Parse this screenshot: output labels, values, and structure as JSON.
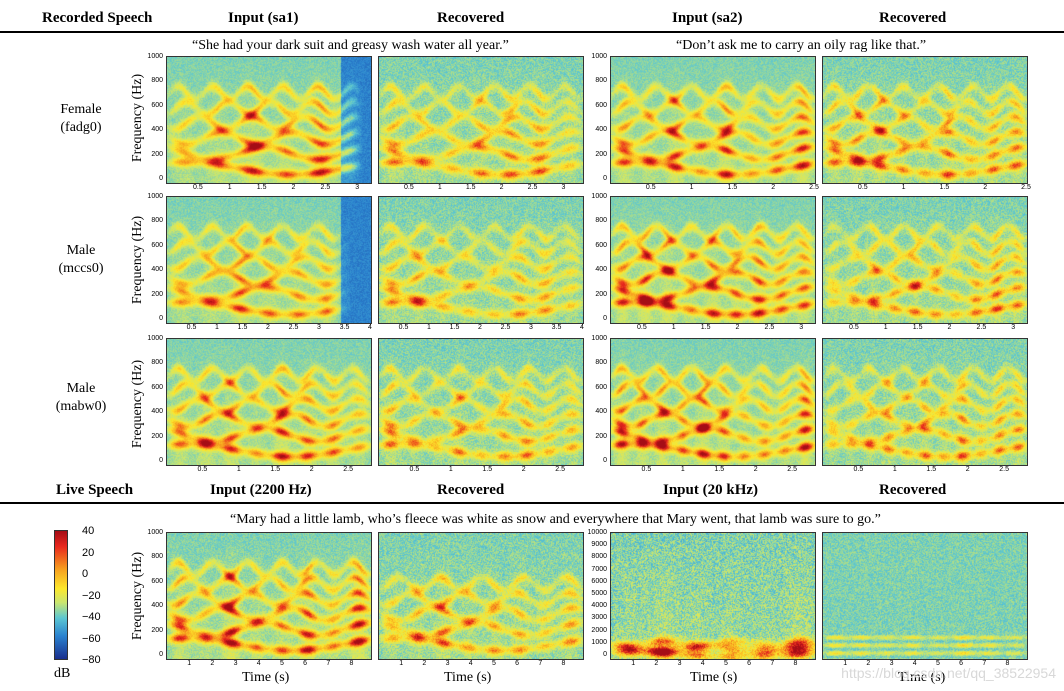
{
  "recorded": {
    "headers": [
      "Recorded Speech",
      "Input (sa1)",
      "Recovered",
      "Input (sa2)",
      "Recovered"
    ],
    "quotes": [
      "“She had your dark suit and greasy wash water all year.”",
      "“Don’t ask me to carry an oily rag like that.”"
    ],
    "rows": [
      {
        "speaker": "Female",
        "id": "(fadg0)"
      },
      {
        "speaker": "Male",
        "id": "(mccs0)"
      },
      {
        "speaker": "Male",
        "id": "(mabw0)"
      }
    ],
    "ylabel": "Frequency (Hz)",
    "yticks": [
      "1000",
      "800",
      "600",
      "400",
      "200",
      "0"
    ],
    "xticks": [
      [
        [
          "0.5",
          "1",
          "1.5",
          "2",
          "2.5",
          "3"
        ],
        [
          "0.5",
          "1",
          "1.5",
          "2",
          "2.5",
          "3"
        ],
        [
          "0.5",
          "1",
          "1.5",
          "2",
          "2.5"
        ],
        [
          "0.5",
          "1",
          "1.5",
          "2",
          "2.5"
        ]
      ],
      [
        [
          "0.5",
          "1",
          "1.5",
          "2",
          "2.5",
          "3",
          "3.5",
          "4"
        ],
        [
          "0.5",
          "1",
          "1.5",
          "2",
          "2.5",
          "3",
          "3.5",
          "4"
        ],
        [
          "0.5",
          "1",
          "1.5",
          "2",
          "2.5",
          "3"
        ],
        [
          "0.5",
          "1",
          "1.5",
          "2",
          "2.5",
          "3"
        ]
      ],
      [
        [
          "0.5",
          "1",
          "1.5",
          "2",
          "2.5"
        ],
        [
          "0.5",
          "1",
          "1.5",
          "2",
          "2.5"
        ],
        [
          "0.5",
          "1",
          "1.5",
          "2",
          "2.5"
        ],
        [
          "0.5",
          "1",
          "1.5",
          "2",
          "2.5"
        ]
      ]
    ]
  },
  "live": {
    "headers": [
      "Live Speech",
      "Input (2200 Hz)",
      "Recovered",
      "Input (20 kHz)",
      "Recovered"
    ],
    "quote": "“Mary had a little lamb, who’s fleece was white as snow and everywhere that Mary went, that lamb was sure to go.”",
    "ylabel": "Frequency (Hz)",
    "yticks_low": [
      "1000",
      "800",
      "600",
      "400",
      "200",
      "0"
    ],
    "yticks_high": [
      "10000",
      "9000",
      "8000",
      "7000",
      "6000",
      "5000",
      "4000",
      "3000",
      "2000",
      "1000",
      "0"
    ],
    "xticks": [
      "1",
      "2",
      "3",
      "4",
      "5",
      "6",
      "7",
      "8"
    ],
    "xlabel": "Time (s)"
  },
  "colorbar": {
    "ticks": [
      "40",
      "20",
      "0",
      "−20",
      "−40",
      "−60",
      "−80"
    ],
    "unit": "dB",
    "colors": [
      "#a50d16",
      "#e8271e",
      "#f7a01f",
      "#fde82c",
      "#5bc6d2",
      "#2a82cf",
      "#1a2f8e"
    ]
  },
  "watermark": "https://blog.csdn.net/qq_38522954"
}
